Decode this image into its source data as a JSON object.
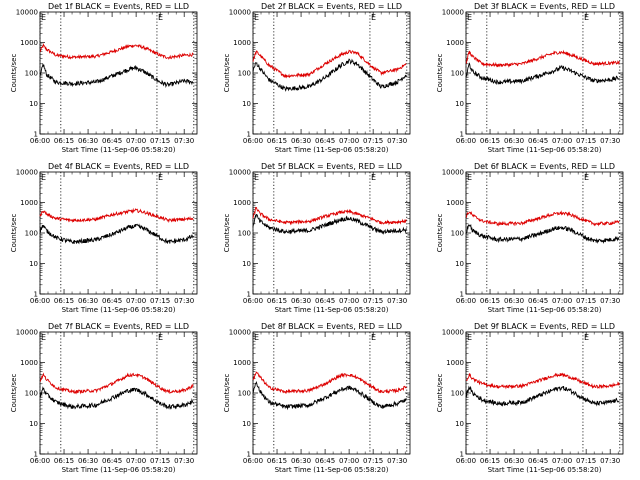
{
  "chart_data": {
    "type": "line",
    "layout": "3x3 grid of panels",
    "scale": {
      "y": "log"
    },
    "ylim": [
      1,
      10000
    ],
    "ytick_labels": [
      "1",
      "10",
      "100",
      "1000",
      "10000"
    ],
    "x_range": [
      "06:00",
      "07:38"
    ],
    "xtick_labels": [
      "06:00",
      "06:15",
      "06:30",
      "06:45",
      "07:00",
      "07:15",
      "07:30"
    ],
    "ylabel": "Counts/sec",
    "xlabel": "Start Time (11-Sep-06 05:58:20)",
    "vertical_markers": [
      {
        "time": "06:00",
        "label": "E"
      },
      {
        "time": "06:13",
        "label": ""
      },
      {
        "time": "07:13",
        "label": "E"
      },
      {
        "time": "07:36",
        "label": ""
      }
    ],
    "series_colors": {
      "events": "#000000",
      "lld": "#dd0000"
    },
    "panels": [
      {
        "title": "Det 1f  BLACK = Events, RED = LLD",
        "x": [
          "06:00",
          "06:02",
          "06:04",
          "06:10",
          "06:20",
          "06:35",
          "06:45",
          "06:55",
          "07:00",
          "07:05",
          "07:15",
          "07:20",
          "07:30",
          "07:36"
        ],
        "events": [
          70,
          200,
          90,
          50,
          45,
          50,
          80,
          130,
          150,
          110,
          50,
          40,
          55,
          50
        ],
        "lld": [
          500,
          800,
          600,
          380,
          330,
          350,
          500,
          750,
          800,
          680,
          380,
          320,
          380,
          400
        ]
      },
      {
        "title": "Det 2f  BLACK = Events, RED = LLD",
        "x": [
          "06:00",
          "06:02",
          "06:04",
          "06:10",
          "06:20",
          "06:35",
          "06:45",
          "06:55",
          "07:00",
          "07:05",
          "07:15",
          "07:20",
          "07:30",
          "07:36"
        ],
        "events": [
          120,
          220,
          150,
          60,
          30,
          35,
          70,
          180,
          250,
          200,
          60,
          35,
          50,
          90
        ],
        "lld": [
          250,
          500,
          400,
          180,
          80,
          90,
          200,
          400,
          500,
          450,
          150,
          100,
          130,
          200
        ]
      },
      {
        "title": "Det 3f  BLACK = Events, RED = LLD",
        "x": [
          "06:00",
          "06:02",
          "06:04",
          "06:10",
          "06:20",
          "06:35",
          "06:45",
          "06:55",
          "07:00",
          "07:05",
          "07:15",
          "07:20",
          "07:30",
          "07:36"
        ],
        "events": [
          70,
          200,
          110,
          70,
          50,
          55,
          80,
          120,
          150,
          120,
          70,
          55,
          60,
          70
        ],
        "lld": [
          200,
          500,
          350,
          200,
          180,
          200,
          300,
          450,
          480,
          400,
          250,
          200,
          210,
          220
        ]
      },
      {
        "title": "Det 4f  BLACK = Events, RED = LLD",
        "x": [
          "06:00",
          "06:02",
          "06:04",
          "06:10",
          "06:20",
          "06:35",
          "06:45",
          "06:55",
          "07:00",
          "07:05",
          "07:15",
          "07:20",
          "07:30",
          "07:36"
        ],
        "events": [
          120,
          180,
          120,
          70,
          50,
          60,
          90,
          150,
          170,
          140,
          70,
          50,
          60,
          80
        ],
        "lld": [
          350,
          550,
          420,
          300,
          260,
          280,
          400,
          500,
          550,
          480,
          320,
          260,
          280,
          300
        ]
      },
      {
        "title": "Det 5f  BLACK = Events, RED = LLD",
        "x": [
          "06:00",
          "06:02",
          "06:04",
          "06:10",
          "06:20",
          "06:35",
          "06:45",
          "06:55",
          "07:00",
          "07:05",
          "07:15",
          "07:20",
          "07:30",
          "07:36"
        ],
        "events": [
          180,
          400,
          250,
          150,
          110,
          120,
          180,
          280,
          300,
          250,
          140,
          110,
          120,
          130
        ],
        "lld": [
          300,
          700,
          450,
          280,
          220,
          240,
          350,
          480,
          500,
          420,
          280,
          220,
          230,
          250
        ]
      },
      {
        "title": "Det 6f  BLACK = Events, RED = LLD",
        "x": [
          "06:00",
          "06:02",
          "06:04",
          "06:10",
          "06:20",
          "06:35",
          "06:45",
          "06:55",
          "07:00",
          "07:05",
          "07:15",
          "07:20",
          "07:30",
          "07:36"
        ],
        "events": [
          100,
          200,
          120,
          80,
          60,
          65,
          90,
          140,
          150,
          130,
          70,
          55,
          60,
          70
        ],
        "lld": [
          350,
          500,
          380,
          250,
          200,
          210,
          300,
          420,
          450,
          400,
          250,
          200,
          210,
          230
        ]
      },
      {
        "title": "Det 7f  BLACK = Events, RED = LLD",
        "x": [
          "06:00",
          "06:02",
          "06:04",
          "06:10",
          "06:20",
          "06:35",
          "06:45",
          "06:55",
          "07:00",
          "07:05",
          "07:15",
          "07:20",
          "07:30",
          "07:36"
        ],
        "events": [
          70,
          150,
          90,
          50,
          35,
          40,
          70,
          120,
          130,
          100,
          45,
          35,
          40,
          55
        ],
        "lld": [
          250,
          400,
          280,
          150,
          110,
          120,
          200,
          380,
          400,
          320,
          150,
          110,
          120,
          180
        ]
      },
      {
        "title": "Det 8f  BLACK = Events, RED = LLD",
        "x": [
          "06:00",
          "06:02",
          "06:04",
          "06:10",
          "06:20",
          "06:35",
          "06:45",
          "06:55",
          "07:00",
          "07:05",
          "07:15",
          "07:20",
          "07:30",
          "07:36"
        ],
        "events": [
          100,
          250,
          120,
          50,
          35,
          40,
          70,
          130,
          150,
          120,
          50,
          35,
          45,
          60
        ],
        "lld": [
          250,
          500,
          350,
          150,
          110,
          120,
          200,
          380,
          400,
          320,
          150,
          110,
          120,
          160
        ]
      },
      {
        "title": "Det 9f  BLACK = Events, RED = LLD",
        "x": [
          "06:00",
          "06:02",
          "06:04",
          "06:10",
          "06:20",
          "06:35",
          "06:45",
          "06:55",
          "07:00",
          "07:05",
          "07:15",
          "07:20",
          "07:30",
          "07:36"
        ],
        "events": [
          80,
          160,
          100,
          60,
          45,
          50,
          80,
          130,
          150,
          120,
          60,
          45,
          50,
          60
        ],
        "lld": [
          250,
          400,
          300,
          200,
          160,
          170,
          250,
          380,
          400,
          330,
          200,
          160,
          170,
          200
        ]
      }
    ]
  }
}
